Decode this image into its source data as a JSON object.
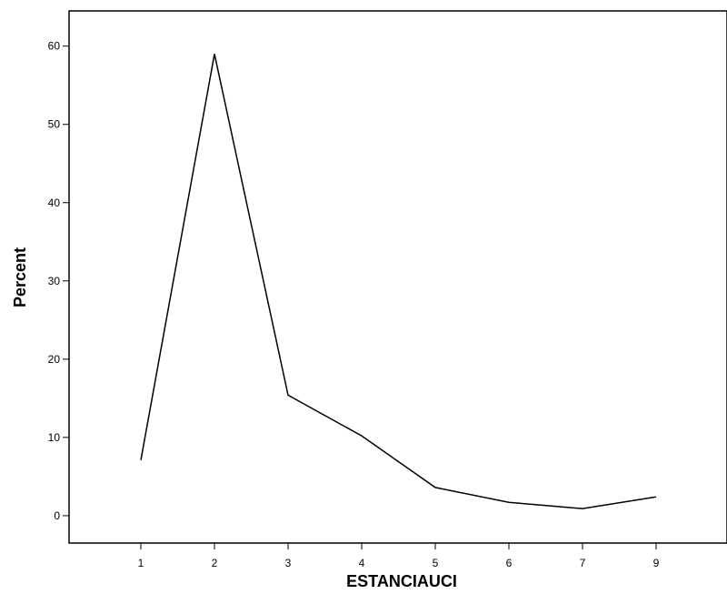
{
  "chart_data": {
    "type": "line",
    "title": "",
    "xlabel": "ESTANCIAUCI",
    "ylabel": "Percent",
    "categories": [
      "1",
      "2",
      "3",
      "4",
      "5",
      "6",
      "7",
      "9"
    ],
    "series": [
      {
        "values": [
          7.1,
          59.0,
          15.4,
          10.2,
          3.6,
          1.7,
          0.9,
          2.4
        ]
      }
    ],
    "ylim": [
      -3.5,
      64.5
    ],
    "yticks": [
      0,
      10,
      20,
      30,
      40,
      50,
      60
    ],
    "grid": false,
    "legend": "none",
    "line_color": "#000000"
  }
}
